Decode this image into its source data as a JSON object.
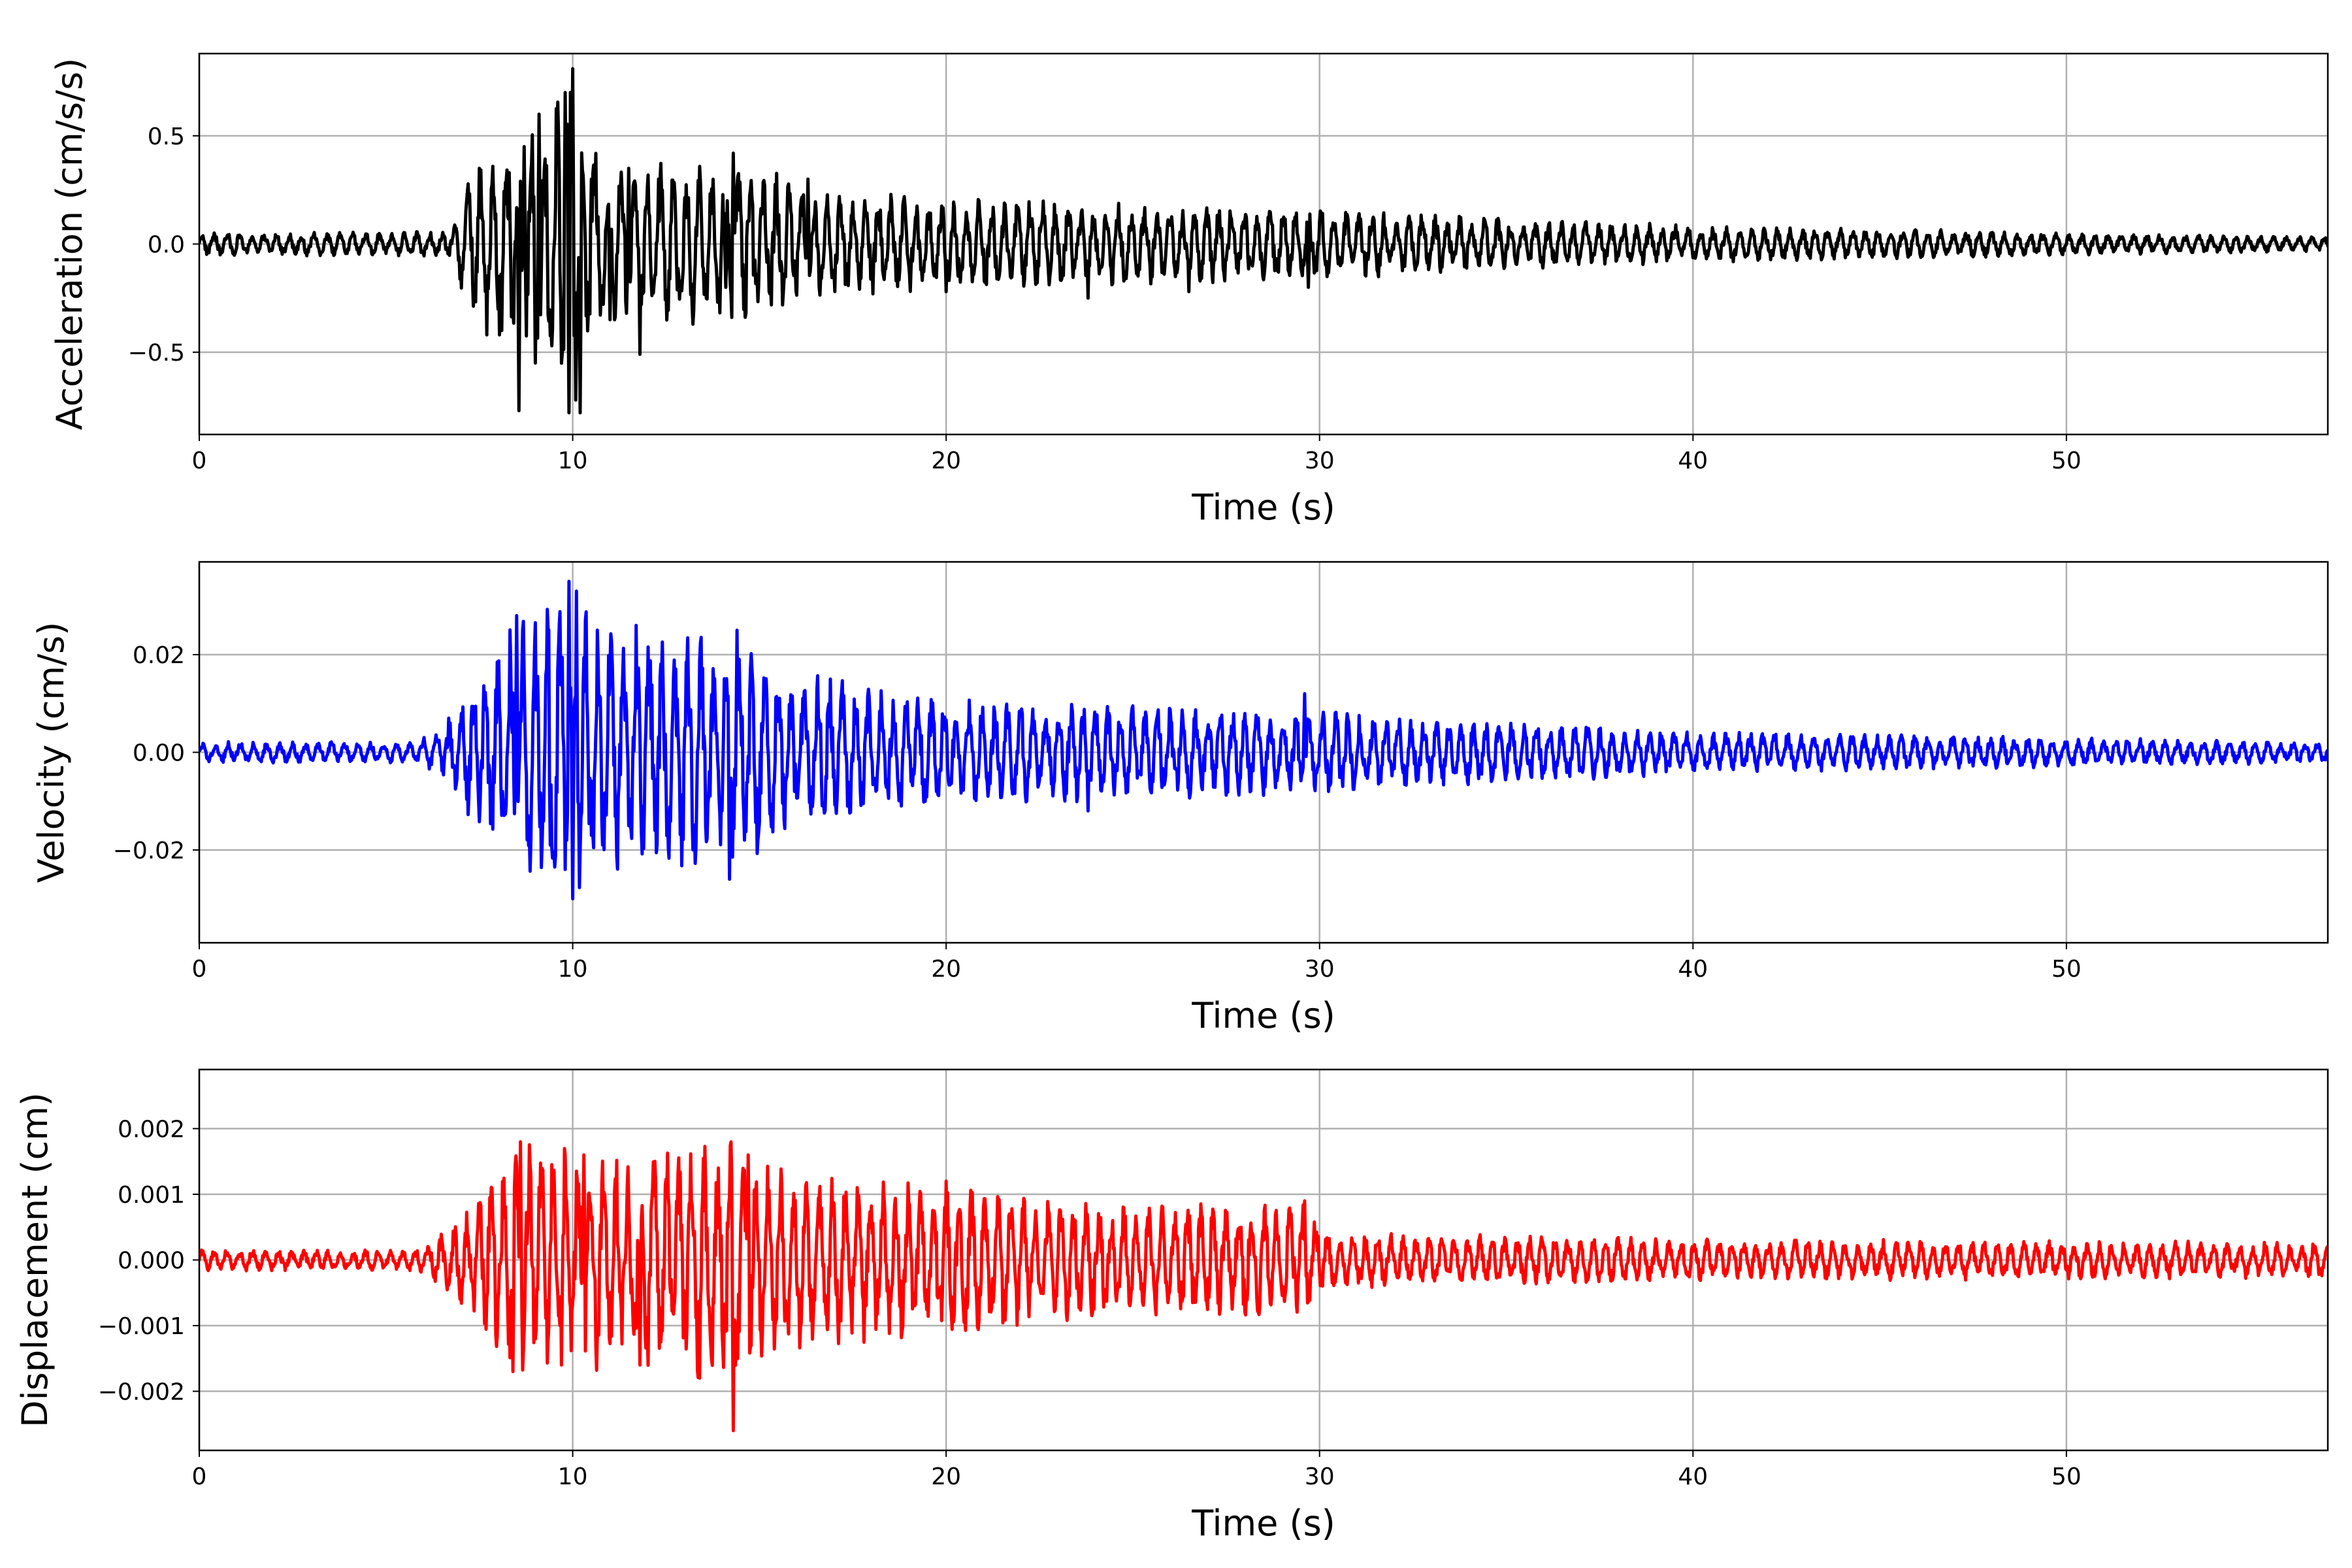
{
  "colors": {
    "acceleration": "#000000",
    "velocity": "#0000ff",
    "displacement": "#ff0000",
    "grid": "#b0b0b0"
  },
  "chart_data": [
    {
      "type": "line",
      "title": "",
      "xlabel": "Time (s)",
      "ylabel": "Acceleration (cm/s/s)",
      "xlim": [
        0,
        57
      ],
      "ylim": [
        -0.88,
        0.88
      ],
      "xticks": [
        0,
        10,
        20,
        30,
        40,
        50
      ],
      "xtick_labels": [
        "0",
        "10",
        "20",
        "30",
        "40",
        "50"
      ],
      "yticks": [
        -0.5,
        0.0,
        0.5
      ],
      "ytick_labels": [
        "−0.5",
        "0.0",
        "0.5"
      ],
      "grid": true,
      "series": [
        {
          "color": "#000000",
          "envelope": [
            [
              0,
              0.05
            ],
            [
              5,
              0.05
            ],
            [
              6.8,
              0.06
            ],
            [
              7.2,
              0.3
            ],
            [
              8.5,
              0.45
            ],
            [
              9.4,
              0.6
            ],
            [
              10,
              0.8
            ],
            [
              10.8,
              0.35
            ],
            [
              12,
              0.35
            ],
            [
              14,
              0.35
            ],
            [
              14.5,
              0.4
            ],
            [
              16,
              0.25
            ],
            [
              20,
              0.2
            ],
            [
              24,
              0.18
            ],
            [
              30,
              0.15
            ],
            [
              40,
              0.08
            ],
            [
              50,
              0.05
            ],
            [
              57,
              0.03
            ]
          ],
          "peaks": [
            [
              7.5,
              0.35
            ],
            [
              7.7,
              -0.42
            ],
            [
              8.1,
              -0.4
            ],
            [
              8.3,
              0.33
            ],
            [
              8.55,
              -0.77
            ],
            [
              8.7,
              0.45
            ],
            [
              9.0,
              -0.55
            ],
            [
              9.1,
              0.6
            ],
            [
              9.8,
              0.7
            ],
            [
              9.9,
              -0.78
            ],
            [
              10.0,
              0.81
            ],
            [
              10.2,
              -0.78
            ],
            [
              10.5,
              0.3
            ],
            [
              11.0,
              -0.35
            ],
            [
              11.5,
              0.35
            ],
            [
              11.8,
              -0.51
            ],
            [
              12.3,
              0.3
            ],
            [
              14.1,
              -0.2
            ],
            [
              14.3,
              0.42
            ],
            [
              16.3,
              0.3
            ],
            [
              20,
              -0.22
            ],
            [
              23.8,
              -0.25
            ],
            [
              26.5,
              -0.22
            ],
            [
              29.7,
              -0.2
            ]
          ]
        }
      ]
    },
    {
      "type": "line",
      "title": "",
      "xlabel": "Time (s)",
      "ylabel": "Velocity (cm/s)",
      "xlim": [
        0,
        57
      ],
      "ylim": [
        -0.039,
        0.039
      ],
      "xticks": [
        0,
        10,
        20,
        30,
        40,
        50
      ],
      "xtick_labels": [
        "0",
        "10",
        "20",
        "30",
        "40",
        "50"
      ],
      "yticks": [
        -0.02,
        0.0,
        0.02
      ],
      "ytick_labels": [
        "−0.02",
        "0.00",
        "0.02"
      ],
      "grid": true,
      "series": [
        {
          "color": "#0000ff",
          "envelope": [
            [
              0,
              0.002
            ],
            [
              5.8,
              0.002
            ],
            [
              6.5,
              0.005
            ],
            [
              7.2,
              0.012
            ],
            [
              8.5,
              0.025
            ],
            [
              9.9,
              0.03
            ],
            [
              11,
              0.025
            ],
            [
              12,
              0.022
            ],
            [
              14.5,
              0.022
            ],
            [
              16,
              0.015
            ],
            [
              20,
              0.01
            ],
            [
              30,
              0.008
            ],
            [
              40,
              0.004
            ],
            [
              57,
              0.002
            ]
          ],
          "peaks": [
            [
              8.5,
              0.028
            ],
            [
              9.4,
              -0.019
            ],
            [
              9.8,
              -0.024
            ],
            [
              9.9,
              0.035
            ],
            [
              10.0,
              -0.03
            ],
            [
              10.1,
              0.033
            ],
            [
              10.5,
              -0.017
            ],
            [
              11.7,
              0.026
            ],
            [
              12.2,
              -0.016
            ],
            [
              14.2,
              -0.026
            ],
            [
              14.4,
              0.025
            ],
            [
              16.9,
              0.015
            ],
            [
              23.8,
              -0.012
            ],
            [
              29.6,
              0.012
            ]
          ]
        }
      ]
    },
    {
      "type": "line",
      "title": "",
      "xlabel": "Time (s)",
      "ylabel": "Displacement (cm)",
      "xlim": [
        0,
        57
      ],
      "ylim": [
        -0.0029,
        0.0029
      ],
      "xticks": [
        0,
        10,
        20,
        30,
        40,
        50
      ],
      "xtick_labels": [
        "0",
        "10",
        "20",
        "30",
        "40",
        "50"
      ],
      "yticks": [
        -0.002,
        -0.001,
        0.0,
        0.001,
        0.002
      ],
      "ytick_labels": [
        "−0.002",
        "−0.001",
        "0.000",
        "0.001",
        "0.002"
      ],
      "grid": true,
      "series": [
        {
          "color": "#ff0000",
          "envelope": [
            [
              0,
              0.00015
            ],
            [
              5.8,
              0.00015
            ],
            [
              6.8,
              0.0005
            ],
            [
              8.6,
              0.0017
            ],
            [
              10,
              0.0016
            ],
            [
              11.5,
              0.0015
            ],
            [
              14.3,
              0.0018
            ],
            [
              15,
              0.0015
            ],
            [
              16.5,
              0.0012
            ],
            [
              20,
              0.0011
            ],
            [
              25,
              0.0008
            ],
            [
              29.6,
              0.0008
            ],
            [
              30.2,
              0.0004
            ],
            [
              40,
              0.0003
            ],
            [
              57,
              0.00025
            ]
          ],
          "peaks": [
            [
              8.4,
              -0.0017
            ],
            [
              8.6,
              0.0018
            ],
            [
              9.7,
              -0.0016
            ],
            [
              10.3,
              0.0016
            ],
            [
              11.8,
              -0.0016
            ],
            [
              13.4,
              -0.0018
            ],
            [
              13.9,
              0.0014
            ],
            [
              14.3,
              -0.0026
            ],
            [
              14.7,
              0.0016
            ],
            [
              20,
              0.0012
            ],
            [
              29.6,
              0.0009
            ]
          ]
        }
      ]
    }
  ]
}
